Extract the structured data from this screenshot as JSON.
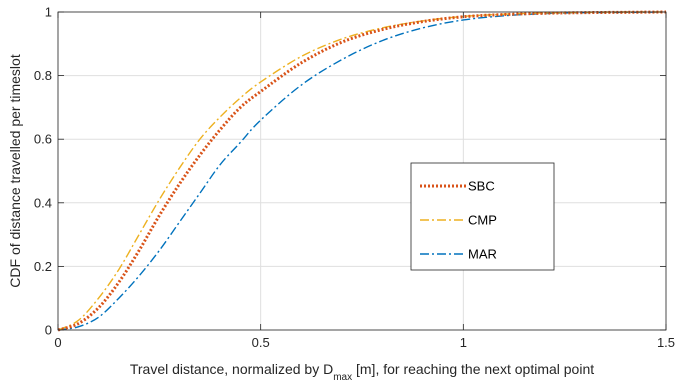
{
  "chart_data": {
    "type": "line",
    "xlabel": {
      "pre": "Travel distance, normalized by D",
      "sub": "max",
      "post": " [m], for reaching the next optimal point"
    },
    "ylabel": "CDF of distance travelled per timeslot",
    "xlim": [
      0,
      1.5
    ],
    "ylim": [
      0,
      1
    ],
    "xticks": [
      0,
      0.5,
      1,
      1.5
    ],
    "xtick_labels": [
      "0",
      "0.5",
      "1",
      "1.5"
    ],
    "yticks": [
      0,
      0.2,
      0.4,
      0.6,
      0.8,
      1
    ],
    "ytick_labels": [
      "0",
      "0.2",
      "0.4",
      "0.6",
      "0.8",
      "1"
    ],
    "grid": true,
    "legend_position": "center-right",
    "series": [
      {
        "name": "SBC",
        "color": "#D95319",
        "style": "dotted",
        "x": [
          0,
          0.05,
          0.1,
          0.15,
          0.2,
          0.25,
          0.3,
          0.35,
          0.4,
          0.45,
          0.5,
          0.6,
          0.7,
          0.8,
          0.9,
          1.0,
          1.1,
          1.2,
          1.3,
          1.4,
          1.5
        ],
        "y": [
          0,
          0.02,
          0.07,
          0.15,
          0.25,
          0.36,
          0.46,
          0.55,
          0.63,
          0.7,
          0.75,
          0.84,
          0.905,
          0.945,
          0.97,
          0.985,
          0.992,
          0.996,
          0.998,
          0.999,
          1.0
        ]
      },
      {
        "name": "CMP",
        "color": "#EDB120",
        "style": "dashdot",
        "x": [
          0,
          0.05,
          0.1,
          0.15,
          0.2,
          0.25,
          0.3,
          0.35,
          0.4,
          0.45,
          0.5,
          0.6,
          0.7,
          0.8,
          0.9,
          1.0,
          1.1,
          1.2,
          1.3,
          1.4,
          1.5
        ],
        "y": [
          0,
          0.03,
          0.1,
          0.19,
          0.3,
          0.41,
          0.51,
          0.6,
          0.67,
          0.73,
          0.78,
          0.86,
          0.915,
          0.95,
          0.972,
          0.986,
          0.993,
          0.997,
          0.999,
          1.0,
          1.0
        ]
      },
      {
        "name": "MAR",
        "color": "#0072BD",
        "style": "dashdot",
        "x": [
          0,
          0.05,
          0.1,
          0.15,
          0.2,
          0.25,
          0.3,
          0.35,
          0.4,
          0.45,
          0.5,
          0.6,
          0.7,
          0.8,
          0.9,
          1.0,
          1.1,
          1.2,
          1.3,
          1.4,
          1.5
        ],
        "y": [
          0,
          0.01,
          0.04,
          0.1,
          0.17,
          0.25,
          0.34,
          0.43,
          0.52,
          0.59,
          0.66,
          0.77,
          0.85,
          0.91,
          0.95,
          0.975,
          0.988,
          0.995,
          0.998,
          0.999,
          1.0
        ]
      }
    ]
  }
}
